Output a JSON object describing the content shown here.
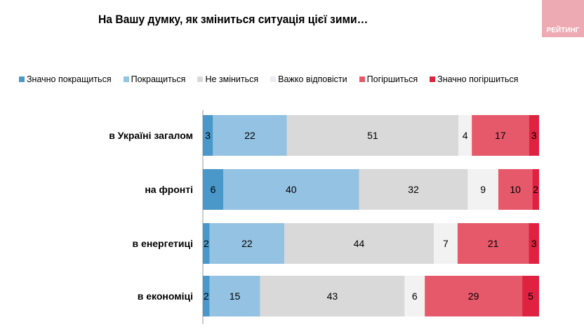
{
  "title": "На Вашу думку, як зміниться ситуація цієї зими…",
  "logo_text": "РЕЙТИНГ",
  "chart_data": {
    "type": "bar",
    "orientation": "horizontal",
    "stacked": true,
    "title": "На Вашу думку, як зміниться ситуація цієї зими…",
    "categories": [
      "в Україні загалом",
      "на фронті",
      "в енергетиці",
      "в економіці"
    ],
    "series": [
      {
        "name": "Значно покращиться",
        "color": "#4a98c9",
        "values": [
          3,
          6,
          2,
          2
        ]
      },
      {
        "name": "Покращиться",
        "color": "#94c2e2",
        "values": [
          22,
          40,
          22,
          15
        ]
      },
      {
        "name": "Не зміниться",
        "color": "#d9d9d9",
        "values": [
          51,
          32,
          44,
          43
        ]
      },
      {
        "name": "Важко відповісти",
        "color": "#f2f2f2",
        "values": [
          4,
          9,
          7,
          6
        ]
      },
      {
        "name": "Погіршиться",
        "color": "#e6596b",
        "values": [
          17,
          10,
          21,
          29
        ]
      },
      {
        "name": "Значно погіршиться",
        "color": "#df2240",
        "values": [
          3,
          2,
          3,
          5
        ]
      }
    ],
    "legend": "top",
    "grid": false
  }
}
